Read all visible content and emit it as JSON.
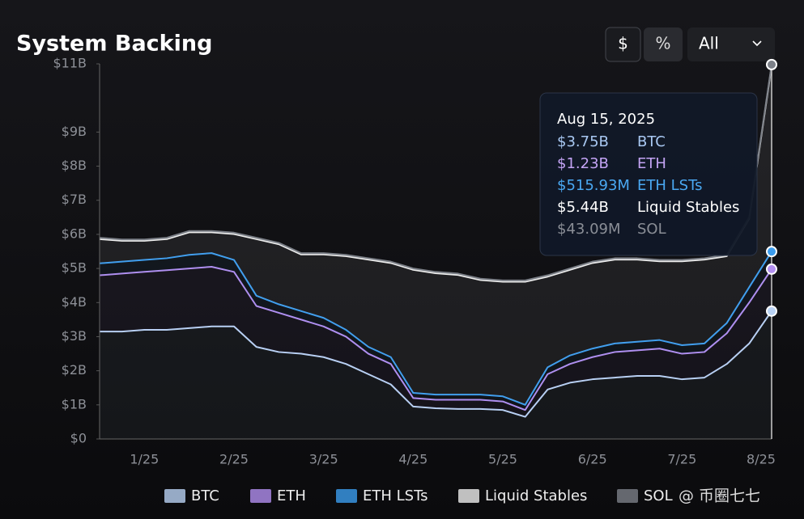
{
  "header": {
    "title": "System Backing",
    "buttons": [
      "$",
      "%"
    ],
    "range": "All"
  },
  "chart_data": {
    "type": "stacked-area",
    "categories": [
      null,
      null,
      "1/25",
      null,
      null,
      null,
      "2/25",
      null,
      null,
      null,
      "3/25",
      null,
      null,
      null,
      "4/25",
      null,
      null,
      null,
      "5/25",
      null,
      null,
      null,
      "6/25",
      null,
      null,
      null,
      "7/25",
      null,
      null,
      null,
      "8/25"
    ],
    "series": [
      {
        "name": "BTC",
        "color": "#b9d2f4",
        "values": [
          3.15,
          3.15,
          3.2,
          3.2,
          3.25,
          3.3,
          3.3,
          2.7,
          2.55,
          2.5,
          2.4,
          2.2,
          1.9,
          1.6,
          0.95,
          0.9,
          0.88,
          0.88,
          0.85,
          0.65,
          1.45,
          1.65,
          1.75,
          1.8,
          1.85,
          1.85,
          1.75,
          1.8,
          2.2,
          2.8,
          3.75
        ]
      },
      {
        "name": "ETH",
        "color": "#b28ff0",
        "values": [
          1.65,
          1.7,
          1.7,
          1.75,
          1.75,
          1.75,
          1.6,
          1.2,
          1.15,
          1.0,
          0.9,
          0.8,
          0.6,
          0.6,
          0.25,
          0.25,
          0.27,
          0.27,
          0.25,
          0.2,
          0.45,
          0.55,
          0.65,
          0.75,
          0.75,
          0.8,
          0.75,
          0.75,
          0.9,
          1.2,
          1.23
        ]
      },
      {
        "name": "ETH LSTs",
        "color": "#3b9cee",
        "values": [
          0.35,
          0.35,
          0.35,
          0.35,
          0.4,
          0.4,
          0.35,
          0.3,
          0.25,
          0.25,
          0.25,
          0.2,
          0.2,
          0.2,
          0.15,
          0.15,
          0.15,
          0.15,
          0.15,
          0.15,
          0.2,
          0.25,
          0.25,
          0.25,
          0.25,
          0.25,
          0.25,
          0.25,
          0.3,
          0.45,
          0.51593
        ]
      },
      {
        "name": "Liquid Stables",
        "color": "#eeeeee",
        "values": [
          0.71,
          0.61,
          0.56,
          0.56,
          0.66,
          0.61,
          0.76,
          1.66,
          1.76,
          1.66,
          1.86,
          2.16,
          2.56,
          2.76,
          3.61,
          3.56,
          3.51,
          3.36,
          3.36,
          3.61,
          2.66,
          2.51,
          2.51,
          2.46,
          2.41,
          2.31,
          2.46,
          2.46,
          1.96,
          2.01,
          5.44
        ]
      },
      {
        "name": "SOL",
        "color": "#7c8088",
        "values": [
          0.04,
          0.04,
          0.04,
          0.04,
          0.04,
          0.04,
          0.04,
          0.04,
          0.04,
          0.04,
          0.04,
          0.04,
          0.04,
          0.04,
          0.04,
          0.04,
          0.04,
          0.04,
          0.04,
          0.04,
          0.04,
          0.04,
          0.04,
          0.04,
          0.04,
          0.04,
          0.04,
          0.04,
          0.04,
          0.04,
          0.04309
        ]
      }
    ],
    "ylim": [
      0,
      11
    ],
    "yticks": [
      {
        "value": 0,
        "label": "$0"
      },
      {
        "value": 1,
        "label": "$1B"
      },
      {
        "value": 2,
        "label": "$2B"
      },
      {
        "value": 3,
        "label": "$3B"
      },
      {
        "value": 4,
        "label": "$4B"
      },
      {
        "value": 5,
        "label": "$5B"
      },
      {
        "value": 6,
        "label": "$6B"
      },
      {
        "value": 7,
        "label": "$7B"
      },
      {
        "value": 8,
        "label": "$8B"
      },
      {
        "value": 9,
        "label": "$9B"
      },
      {
        "value": 11,
        "label": "$11B"
      }
    ],
    "grid": false,
    "tooltip": {
      "date": "Aug 15, 2025",
      "values": [
        "$3.75B",
        "$1.23B",
        "$515.93M",
        "$5.44B",
        "$43.09M"
      ],
      "colors": [
        "#a9c8f2",
        "#c3a4f4",
        "#4aa8f2",
        "#ffffff",
        "#8a8e96"
      ]
    }
  },
  "watermark": "@ 币圈七七"
}
